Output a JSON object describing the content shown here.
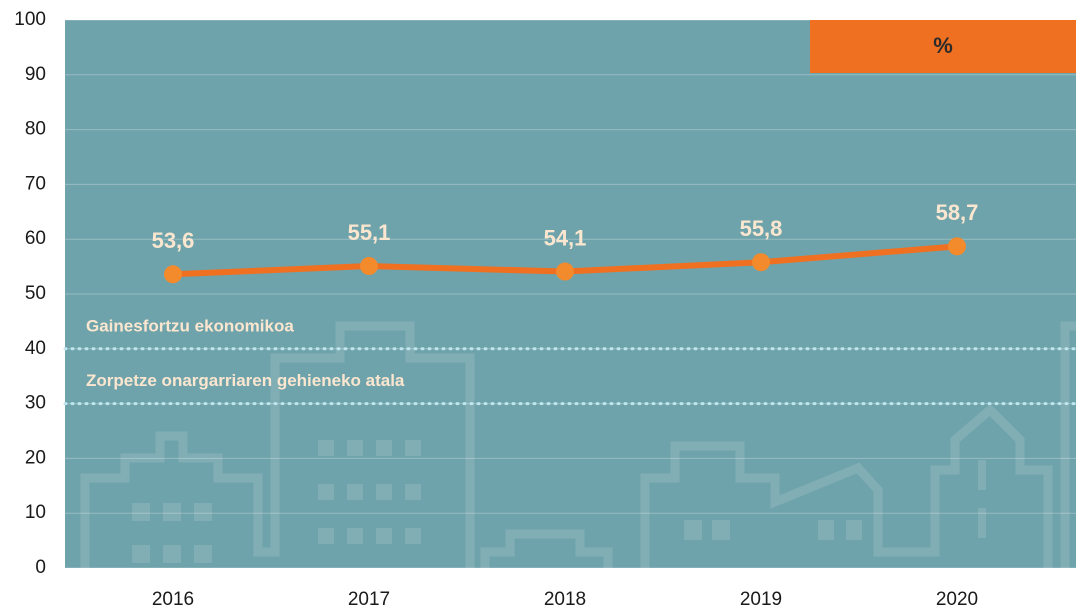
{
  "chart_data": {
    "type": "line",
    "unit_label": "%",
    "categories": [
      "2016",
      "2017",
      "2018",
      "2019",
      "2020"
    ],
    "values": [
      53.6,
      55.1,
      54.1,
      55.8,
      58.7
    ],
    "value_labels": [
      "53,6",
      "55,1",
      "54,1",
      "55,8",
      "58,7"
    ],
    "color": "#f07022",
    "ylim": [
      0,
      100
    ],
    "yticks": [
      0,
      10,
      20,
      30,
      40,
      50,
      60,
      70,
      80,
      90,
      100
    ],
    "grid": true,
    "reference_lines": [
      {
        "value": 40,
        "label": "Gainesfortzu ekonomikoa"
      },
      {
        "value": 30,
        "label": "Zorpetze onargarriaren gehieneko atala"
      }
    ]
  }
}
